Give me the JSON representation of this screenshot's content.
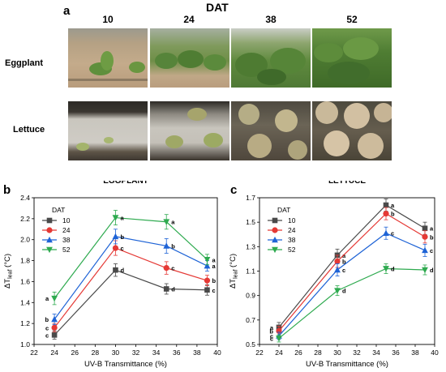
{
  "photo_panel": {
    "label": "a",
    "title": "DAT",
    "columns": [
      "10",
      "24",
      "38",
      "52"
    ],
    "rows": [
      "Eggplant",
      "Lettuce"
    ]
  },
  "colors": {
    "series": [
      "#4a4a4a",
      "#e53935",
      "#1e63d6",
      "#2eaa4f"
    ],
    "soil": "#b49a7c",
    "foliage": "#5e8f3a",
    "lettuce": "#9fae6f",
    "mulch": "#c8c6c0"
  },
  "chart_data": [
    {
      "panel_label": "b",
      "type": "line",
      "title": "EGGPLANT",
      "xlabel": "UV-B Transmittance (%)",
      "ylabel": "ΔT",
      "ylabel_sub": "leaf",
      "ylabel_unit": " (°C)",
      "xlim": [
        22,
        40
      ],
      "ylim": [
        1.0,
        2.4
      ],
      "xticks": [
        "22",
        "24",
        "26",
        "28",
        "30",
        "32",
        "34",
        "36",
        "38",
        "40"
      ],
      "yticks": [
        "1.0",
        "1.2",
        "1.4",
        "1.6",
        "1.8",
        "2.0",
        "2.2",
        "2.4"
      ],
      "legend_title": "DAT",
      "legend_position": "top-left",
      "x": [
        24,
        30,
        35,
        39
      ],
      "series": [
        {
          "name": "10",
          "marker": "square",
          "values": [
            1.09,
            1.71,
            1.53,
            1.52
          ],
          "errors": [
            0.04,
            0.06,
            0.05,
            0.05
          ],
          "letters": [
            "c",
            "d",
            "d",
            "c"
          ]
        },
        {
          "name": "24",
          "marker": "circle",
          "values": [
            1.16,
            1.92,
            1.73,
            1.61
          ],
          "errors": [
            0.04,
            0.07,
            0.06,
            0.05
          ],
          "letters": [
            "c",
            "c",
            "c",
            "b"
          ]
        },
        {
          "name": "38",
          "marker": "triangle-up",
          "values": [
            1.24,
            2.03,
            1.94,
            1.75
          ],
          "errors": [
            0.05,
            0.07,
            0.07,
            0.05
          ],
          "letters": [
            "b",
            "b",
            "b",
            "a"
          ]
        },
        {
          "name": "52",
          "marker": "triangle-down",
          "values": [
            1.44,
            2.21,
            2.17,
            1.81
          ],
          "errors": [
            0.06,
            0.07,
            0.07,
            0.05
          ],
          "letters": [
            "a",
            "a",
            "a",
            "a"
          ]
        }
      ]
    },
    {
      "panel_label": "c",
      "type": "line",
      "title": "LETTUCE",
      "xlabel": "UV-B Transmittance (%)",
      "ylabel": "ΔT",
      "ylabel_sub": "leaf",
      "ylabel_unit": " (°C)",
      "xlim": [
        22,
        40
      ],
      "ylim": [
        0.5,
        1.7
      ],
      "xticks": [
        "22",
        "24",
        "26",
        "28",
        "30",
        "32",
        "34",
        "36",
        "38",
        "40"
      ],
      "yticks": [
        "0.5",
        "0.7",
        "0.9",
        "1.1",
        "1.3",
        "1.5",
        "1.7"
      ],
      "legend_title": "DAT",
      "legend_position": "top-left",
      "x": [
        24,
        30,
        35,
        39
      ],
      "series": [
        {
          "name": "10",
          "marker": "square",
          "values": [
            0.64,
            1.23,
            1.64,
            1.45
          ],
          "errors": [
            0.04,
            0.05,
            0.05,
            0.05
          ],
          "letters": [
            "a",
            "a",
            "a",
            "a"
          ]
        },
        {
          "name": "24",
          "marker": "circle",
          "values": [
            0.61,
            1.18,
            1.57,
            1.38
          ],
          "errors": [
            0.04,
            0.05,
            0.05,
            0.05
          ],
          "letters": [
            "b",
            "b",
            "b",
            "b"
          ]
        },
        {
          "name": "38",
          "marker": "triangle-up",
          "values": [
            0.57,
            1.11,
            1.41,
            1.27
          ],
          "errors": [
            0.03,
            0.05,
            0.05,
            0.05
          ],
          "letters": [
            "c",
            "c",
            "c",
            "c"
          ]
        },
        {
          "name": "52",
          "marker": "triangle-down",
          "values": [
            0.55,
            0.94,
            1.12,
            1.11
          ],
          "errors": [
            0.03,
            0.04,
            0.04,
            0.04
          ],
          "letters": [
            "c",
            "d",
            "d",
            "d"
          ]
        }
      ]
    }
  ]
}
